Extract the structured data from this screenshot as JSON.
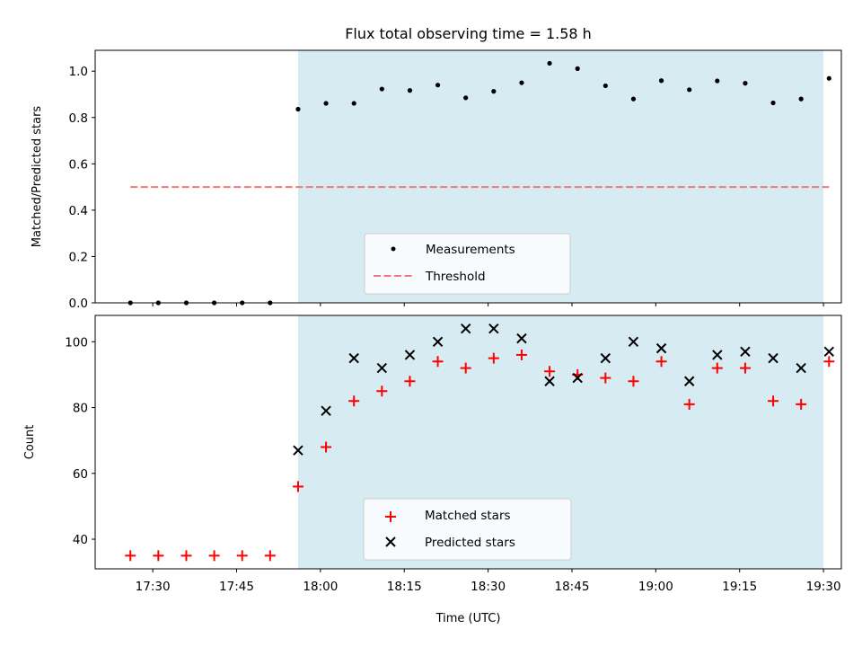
{
  "chart_data": [
    {
      "type": "scatter",
      "title": "Flux total observing time = 1.58 h",
      "xlabel": "",
      "ylabel": "Matched/Predicted stars",
      "ylim": [
        0,
        1.09
      ],
      "yticks": [
        "0.0",
        "0.2",
        "0.4",
        "0.6",
        "0.8",
        "1.0"
      ],
      "shaded_range": [
        "17:56",
        "19:30"
      ],
      "shade_color": "#add8e6",
      "legend_position": "lower-center",
      "series": [
        {
          "name": "Measurements",
          "marker": "dot",
          "color": "#000000",
          "x": [
            "17:26",
            "17:31",
            "17:36",
            "17:41",
            "17:46",
            "17:51",
            "17:56",
            "18:01",
            "18:06",
            "18:11",
            "18:16",
            "18:21",
            "18:26",
            "18:31",
            "18:36",
            "18:41",
            "18:46",
            "18:51",
            "18:56",
            "19:01",
            "19:06",
            "19:11",
            "19:16",
            "19:21",
            "19:26",
            "19:31"
          ],
          "y": [
            0,
            0,
            0,
            0,
            0,
            0,
            0.836,
            0.861,
            0.861,
            0.923,
            0.917,
            0.94,
            0.885,
            0.913,
            0.95,
            1.034,
            1.011,
            0.937,
            0.88,
            0.959,
            0.92,
            0.958,
            0.948,
            0.863,
            0.88,
            0.969
          ]
        },
        {
          "name": "Threshold",
          "marker": "dashed-line",
          "color": "#f07878",
          "x": [
            "17:26",
            "19:31"
          ],
          "y": [
            0.5,
            0.5
          ]
        }
      ]
    },
    {
      "type": "scatter",
      "title": "",
      "xlabel": "Time (UTC)",
      "ylabel": "Count",
      "ylim": [
        31,
        108
      ],
      "yticks": [
        "40",
        "60",
        "80",
        "100"
      ],
      "xticks": [
        "17:30",
        "17:45",
        "18:00",
        "18:15",
        "18:30",
        "18:45",
        "19:00",
        "19:15",
        "19:30"
      ],
      "shaded_range": [
        "17:56",
        "19:30"
      ],
      "shade_color": "#add8e6",
      "legend_position": "lower-center",
      "series": [
        {
          "name": "Matched stars",
          "marker": "plus",
          "color": "#ff0000",
          "x": [
            "17:26",
            "17:31",
            "17:36",
            "17:41",
            "17:46",
            "17:51",
            "17:56",
            "18:01",
            "18:06",
            "18:11",
            "18:16",
            "18:21",
            "18:26",
            "18:31",
            "18:36",
            "18:41",
            "18:46",
            "18:51",
            "18:56",
            "19:01",
            "19:06",
            "19:11",
            "19:16",
            "19:21",
            "19:26",
            "19:31"
          ],
          "y": [
            35,
            35,
            35,
            35,
            35,
            35,
            56,
            68,
            82,
            85,
            88,
            94,
            92,
            95,
            96,
            91,
            90,
            89,
            88,
            94,
            81,
            92,
            92,
            82,
            81,
            94
          ]
        },
        {
          "name": "Predicted stars",
          "marker": "cross",
          "color": "#000000",
          "x": [
            "17:56",
            "18:01",
            "18:06",
            "18:11",
            "18:16",
            "18:21",
            "18:26",
            "18:31",
            "18:36",
            "18:41",
            "18:46",
            "18:51",
            "18:56",
            "19:01",
            "19:06",
            "19:11",
            "19:16",
            "19:21",
            "19:26",
            "19:31"
          ],
          "y": [
            67,
            79,
            95,
            92,
            96,
            100,
            104,
            104,
            101,
            88,
            89,
            95,
            100,
            98,
            88,
            96,
            97,
            95,
            92,
            97
          ]
        }
      ]
    }
  ]
}
